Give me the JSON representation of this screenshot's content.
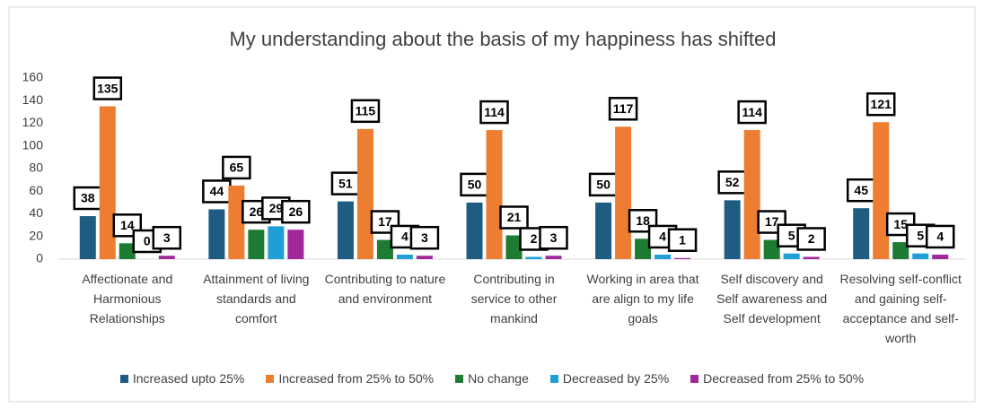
{
  "chart_data": {
    "type": "bar",
    "title": "My understanding about the basis of my happiness has shifted",
    "categories": [
      "Affectionate and Harmonious Relationships",
      "Attainment of living standards and comfort",
      "Contributing to nature and environment",
      "Contributing in service to other mankind",
      "Working in area that are align to my life goals",
      "Self discovery and Self awareness and Self development",
      "Resolving self-conflict and gaining self-acceptance and self-worth"
    ],
    "series": [
      {
        "name": "Increased upto 25%",
        "color": "#1f5c82",
        "values": [
          38,
          44,
          51,
          50,
          50,
          52,
          45
        ]
      },
      {
        "name": "Increased from 25% to 50%",
        "color": "#ed7d31",
        "values": [
          135,
          65,
          115,
          114,
          117,
          114,
          121
        ]
      },
      {
        "name": "No change",
        "color": "#1e7b34",
        "values": [
          14,
          26,
          17,
          21,
          18,
          17,
          15
        ]
      },
      {
        "name": "Decreased by 25%",
        "color": "#1ea0d6",
        "values": [
          0,
          29,
          4,
          2,
          4,
          5,
          5
        ]
      },
      {
        "name": "Decreased from 25% to 50%",
        "color": "#a0289b",
        "values": [
          3,
          26,
          3,
          3,
          1,
          2,
          4
        ]
      }
    ],
    "ylim": [
      0,
      160
    ],
    "yticks": [
      0,
      20,
      40,
      60,
      80,
      100,
      120,
      140,
      160
    ],
    "grid": false,
    "legend": "bottom"
  }
}
